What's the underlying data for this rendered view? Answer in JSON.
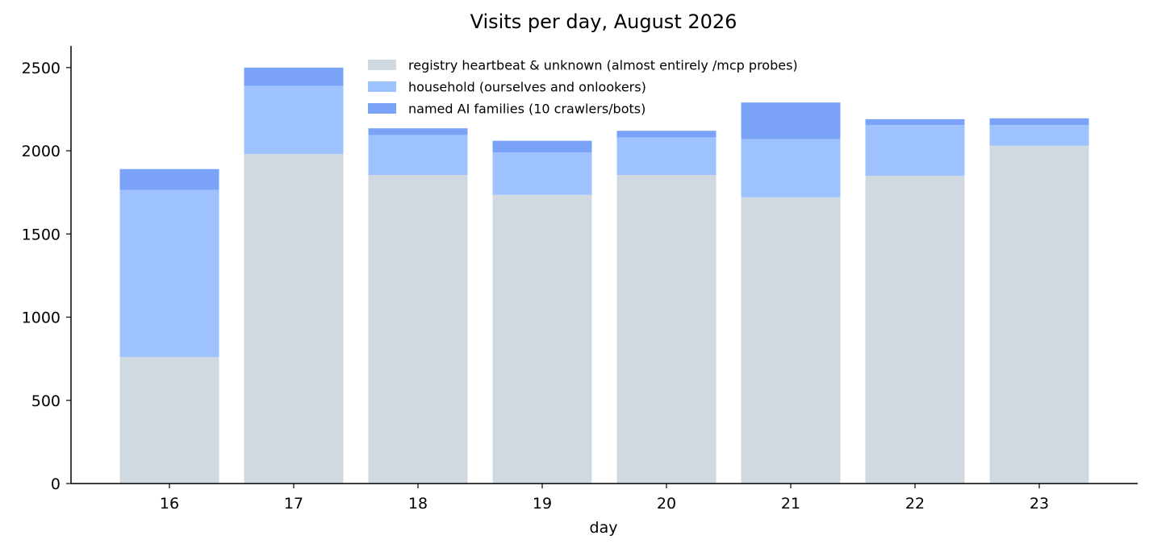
{
  "chart_data": {
    "type": "bar",
    "stacked": true,
    "title": "Visits per day, August 2026",
    "xlabel": "day",
    "ylabel": "",
    "categories": [
      "16",
      "17",
      "18",
      "19",
      "20",
      "21",
      "22",
      "23"
    ],
    "ylim": [
      0,
      2630
    ],
    "yticks": [
      0,
      500,
      1000,
      1500,
      2000,
      2500
    ],
    "grid": false,
    "legend_position": "top-center",
    "series": [
      {
        "name": "registry heartbeat & unknown (almost entirely /mcp probes)",
        "color": "#d0d8e0",
        "values": [
          760,
          1980,
          1855,
          1735,
          1855,
          1720,
          1850,
          2030
        ]
      },
      {
        "name": "household (ourselves and onlookers)",
        "color": "#9ec2fe",
        "values": [
          1005,
          410,
          240,
          255,
          225,
          350,
          305,
          125
        ]
      },
      {
        "name": "named AI families (10 crawlers/bots)",
        "color": "#7aa3f7",
        "values": [
          125,
          110,
          40,
          70,
          40,
          220,
          35,
          40
        ]
      }
    ]
  }
}
